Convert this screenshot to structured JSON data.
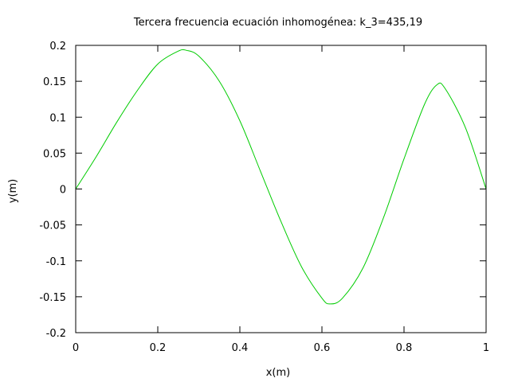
{
  "chart_data": {
    "type": "line",
    "title": "Tercera frecuencia ecuación inhomogénea: k_3=435,19",
    "xlabel": "x(m)",
    "ylabel": "y(m)",
    "xlim": [
      0,
      1
    ],
    "ylim": [
      -0.2,
      0.2
    ],
    "x_ticks": [
      0,
      0.2,
      0.4,
      0.6,
      0.8,
      1
    ],
    "x_tick_labels": [
      "0",
      "0.2",
      "0.4",
      "0.6",
      "0.8",
      "1"
    ],
    "y_ticks": [
      -0.2,
      -0.15,
      -0.1,
      -0.05,
      0,
      0.05,
      0.1,
      0.15,
      0.2
    ],
    "y_tick_labels": [
      "-0.2",
      "-0.15",
      "-0.1",
      "-0.05",
      "0",
      "0.05",
      "0.1",
      "0.15",
      "0.2"
    ],
    "grid": false,
    "line_color": "#00cc00",
    "series": [
      {
        "x": [
          0,
          0.05,
          0.1,
          0.15,
          0.2,
          0.25,
          0.27,
          0.3,
          0.35,
          0.4,
          0.45,
          0.5,
          0.55,
          0.6,
          0.62,
          0.65,
          0.7,
          0.75,
          0.8,
          0.85,
          0.88,
          0.9,
          0.95,
          1
        ],
        "y": [
          0,
          0.045,
          0.093,
          0.137,
          0.174,
          0.192,
          0.193,
          0.185,
          0.15,
          0.095,
          0.025,
          -0.045,
          -0.108,
          -0.152,
          -0.16,
          -0.152,
          -0.11,
          -0.04,
          0.042,
          0.118,
          0.145,
          0.14,
          0.085,
          0
        ]
      }
    ]
  }
}
